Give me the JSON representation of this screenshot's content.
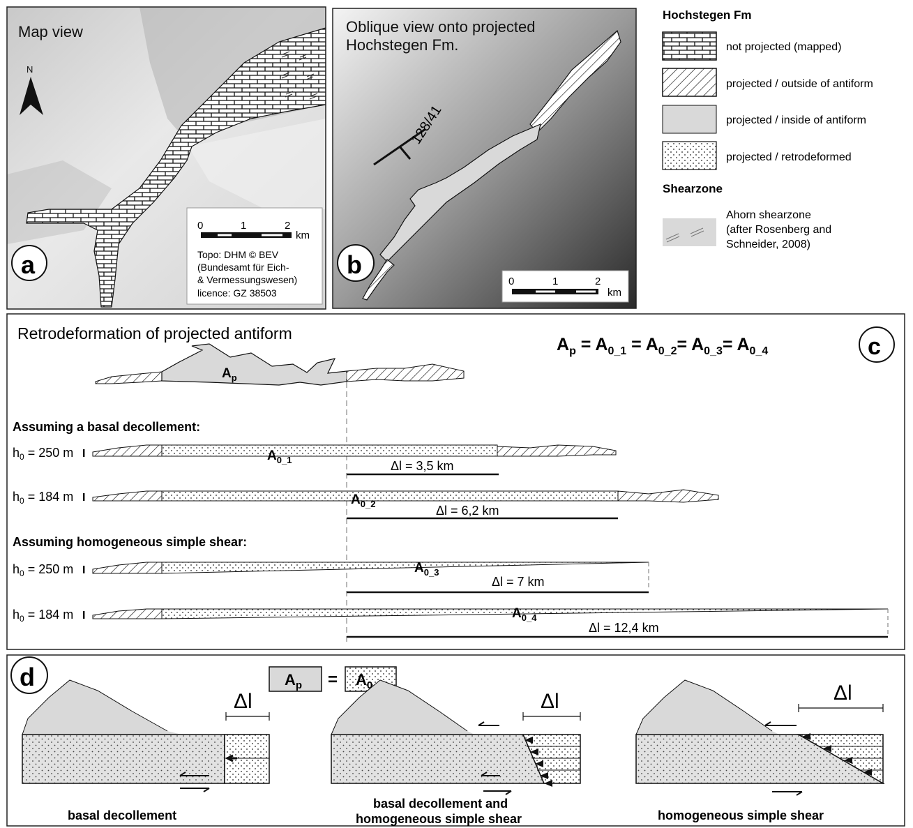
{
  "panel_a": {
    "title": "Map view",
    "north": "N",
    "scale_labels": [
      "0",
      "1",
      "2"
    ],
    "scale_unit": "km",
    "credit": [
      "Topo: DHM © BEV",
      "(Bundesamt für Eich-",
      "& Vermessungswesen)",
      "licence: GZ 38503"
    ],
    "letter": "a"
  },
  "panel_b": {
    "title_line1": "Oblique view onto projected",
    "title_line2": "Hochstegen Fm.",
    "strike_dip": "128/41",
    "scale_labels": [
      "0",
      "1",
      "2"
    ],
    "scale_unit": "km",
    "letter": "b"
  },
  "legend": {
    "hochstegen_title": "Hochstegen Fm",
    "items": [
      {
        "label": "not projected (mapped)",
        "pattern": "bricks"
      },
      {
        "label": "projected / outside of antiform",
        "pattern": "diagonal-hatch"
      },
      {
        "label": "projected / inside of antiform",
        "pattern": "grey-fill"
      },
      {
        "label": "projected / retrodeformed",
        "pattern": "dots"
      }
    ],
    "shearzone_title": "Shearzone",
    "shearzone_lines": [
      "Ahorn shearzone",
      "(after Rosenberg and",
      "Schneider, 2008)"
    ]
  },
  "panel_c": {
    "title": "Retrodeformation of projected antiform",
    "letter": "c",
    "equation": {
      "A": "A",
      "sub_p": "p",
      "rest": " = A",
      "sub1": "0_1",
      "eq2": " = A",
      "sub2": "0_2",
      "eq3": "= A",
      "sub3": "0_3",
      "eq4": "= A",
      "sub4": "0_4"
    },
    "ap_label": {
      "main": "A",
      "sub": "p"
    },
    "section1": "Assuming a basal decollement:",
    "section2": "Assuming homogeneous simple shear:",
    "rows": [
      {
        "h_main": "h",
        "h_sub": "0",
        "h_value": " = 250 m",
        "area_main": "A",
        "area_sub": "0_1",
        "delta": "Δl = 3,5 km"
      },
      {
        "h_main": "h",
        "h_sub": "0",
        "h_value": " = 184 m",
        "area_main": "A",
        "area_sub": "0_2",
        "delta": "Δl = 6,2 km"
      },
      {
        "h_main": "h",
        "h_sub": "0",
        "h_value": " = 250 m",
        "area_main": "A",
        "area_sub": "0_3",
        "delta": "Δl = 7 km"
      },
      {
        "h_main": "h",
        "h_sub": "0",
        "h_value": " = 184 m",
        "area_main": "A",
        "area_sub": "0_4",
        "delta": "Δl = 12,4 km"
      }
    ]
  },
  "panel_d": {
    "letter": "d",
    "eq_left_main": "A",
    "eq_left_sub": "p",
    "eq_sign": "=",
    "eq_right_main": "A",
    "eq_right_sub": "0",
    "delta": "Δl",
    "captions": [
      "basal decollement",
      "basal decollement and",
      "homogeneous simple shear",
      "homogeneous simple shear"
    ]
  }
}
